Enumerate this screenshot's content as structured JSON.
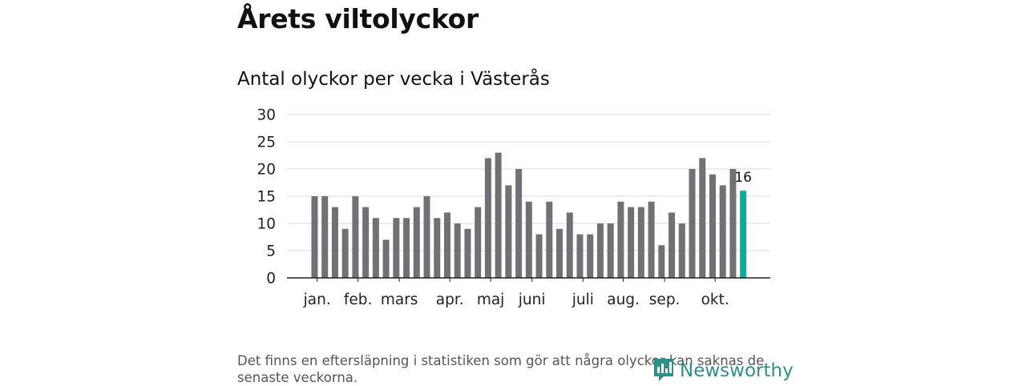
{
  "header": {
    "title": "Årets viltolyckor",
    "subtitle": "Antal olyckor per vecka i Västerås"
  },
  "footnote": "Det finns en eftersläpning i statistiken som gör att några olyckor kan saknas de senaste veckorna.",
  "brand": {
    "name": "Newsworthy",
    "icon": "newsworthy-logo-icon",
    "color": "#2e8f88"
  },
  "colors": {
    "bar": "#717075",
    "highlight": "#12a89d",
    "grid": "#d9d9d9",
    "axis": "#222222"
  },
  "chart_data": {
    "type": "bar",
    "title": "Antal olyckor per vecka i Västerås",
    "xlabel": "",
    "ylabel": "",
    "ylim": [
      0,
      30
    ],
    "yticks": [
      0,
      5,
      10,
      15,
      20,
      25,
      30
    ],
    "grid": true,
    "x": [
      1,
      2,
      3,
      4,
      5,
      6,
      7,
      8,
      9,
      10,
      11,
      12,
      13,
      14,
      15,
      16,
      17,
      18,
      19,
      20,
      21,
      22,
      23,
      24,
      25,
      26,
      27,
      28,
      29,
      30,
      31,
      32,
      33,
      34,
      35,
      36,
      37,
      38,
      39,
      40,
      41,
      42,
      43
    ],
    "values": [
      15,
      15,
      13,
      9,
      15,
      13,
      11,
      7,
      11,
      11,
      13,
      15,
      11,
      12,
      10,
      9,
      13,
      22,
      23,
      17,
      20,
      14,
      8,
      14,
      9,
      12,
      8,
      8,
      10,
      10,
      14,
      13,
      13,
      14,
      6,
      12,
      10,
      20,
      22,
      19,
      17,
      20,
      16
    ],
    "highlight_index": 42,
    "highlight_label": "16",
    "month_labels": [
      {
        "label": "jan.",
        "week": 1.25
      },
      {
        "label": "feb.",
        "week": 5.25
      },
      {
        "label": "mars",
        "week": 9.3
      },
      {
        "label": "apr.",
        "week": 14.25
      },
      {
        "label": "maj",
        "week": 18.25
      },
      {
        "label": "juni",
        "week": 22.3
      },
      {
        "label": "juli",
        "week": 27.3
      },
      {
        "label": "aug.",
        "week": 31.25
      },
      {
        "label": "sep.",
        "week": 35.3
      },
      {
        "label": "okt.",
        "week": 40.25
      }
    ]
  }
}
